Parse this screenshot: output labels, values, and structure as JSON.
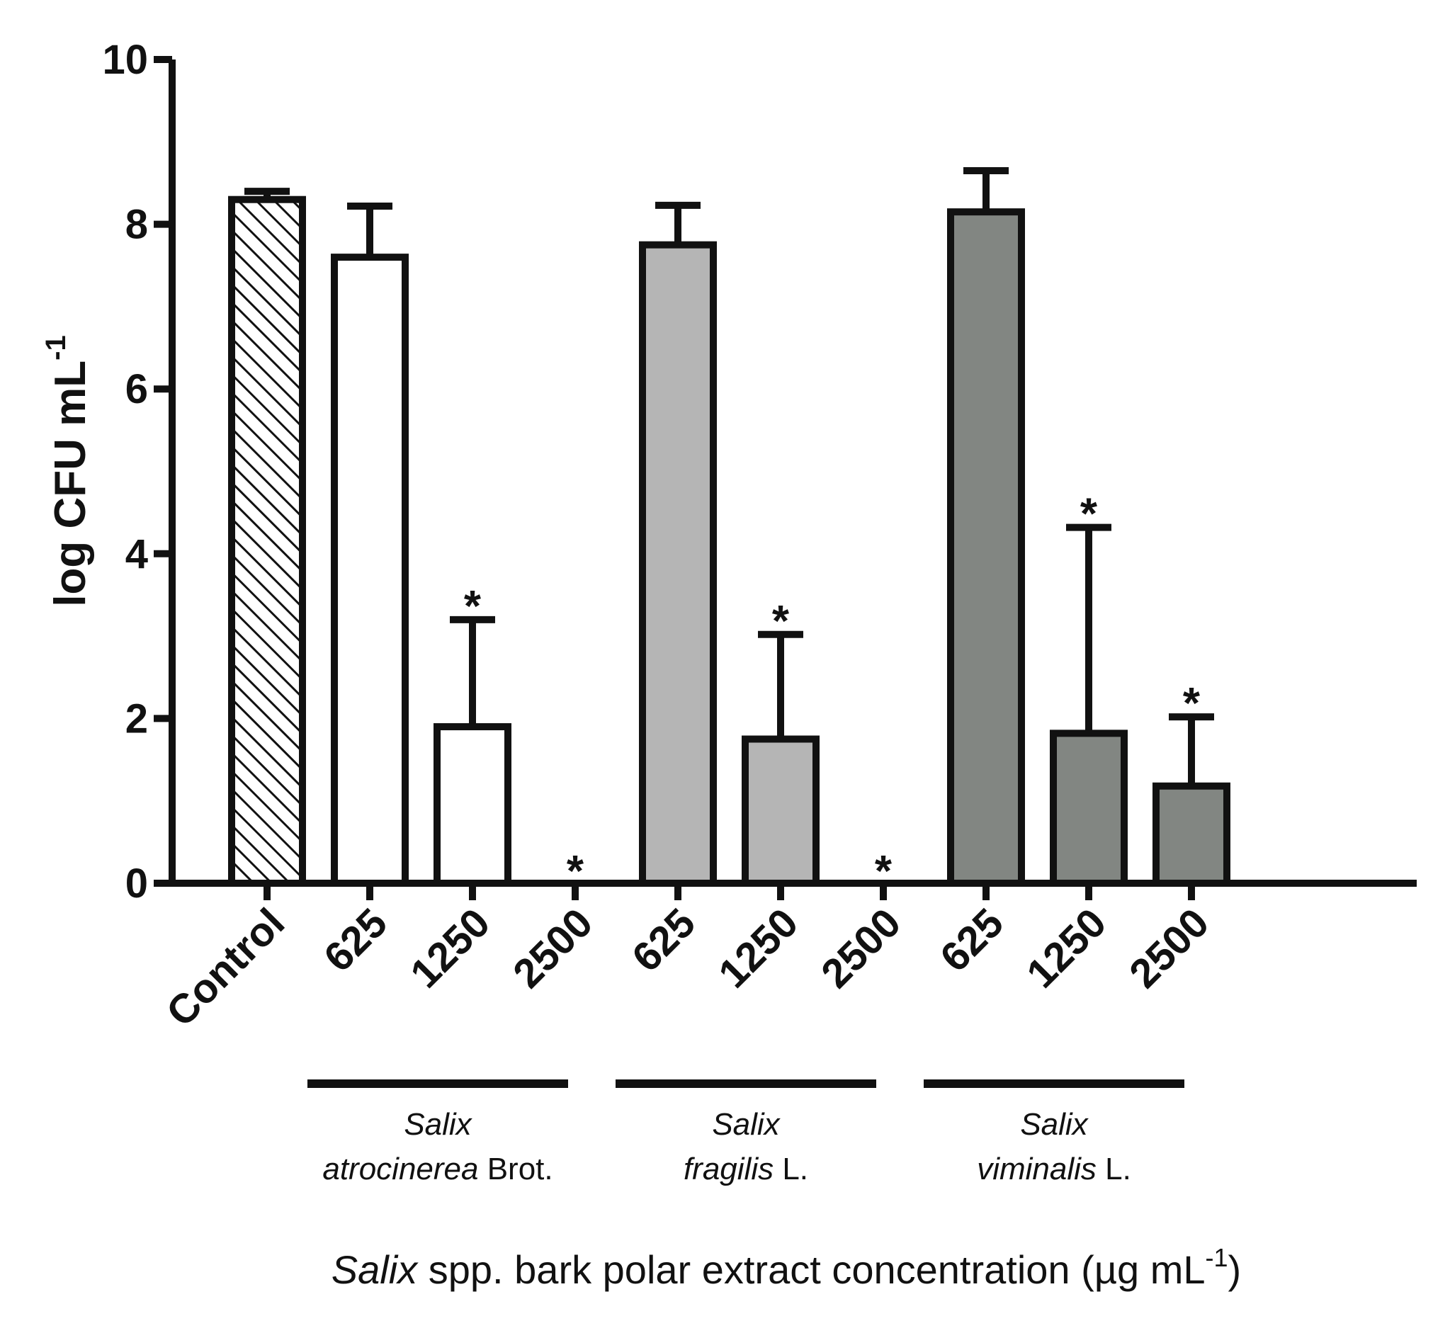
{
  "chart_data": {
    "type": "bar",
    "ylabel": "log CFU mL",
    "ylabel_sup": "-1",
    "xlabel": {
      "italic": "Salix",
      "rest": " spp. bark polar extract concentration (µg mL",
      "sup": "-1",
      "end": ")"
    },
    "ylim": [
      0,
      10
    ],
    "yticks": [
      "0",
      "2",
      "4",
      "6",
      "8",
      "10"
    ],
    "bars": [
      {
        "category": "Control",
        "value": 8.3,
        "error": 0.1,
        "fill": "hatch",
        "significant": false
      },
      {
        "category": "625",
        "value": 7.6,
        "error": 0.62,
        "fill": "#ffffff",
        "significant": false
      },
      {
        "category": "1250",
        "value": 1.9,
        "error": 1.3,
        "fill": "#ffffff",
        "significant": true
      },
      {
        "category": "2500",
        "value": 0,
        "error": 0,
        "fill": "#ffffff",
        "significant": true
      },
      {
        "category": "625",
        "value": 7.75,
        "error": 0.48,
        "fill": "#b5b5b5",
        "significant": false
      },
      {
        "category": "1250",
        "value": 1.75,
        "error": 1.27,
        "fill": "#b5b5b5",
        "significant": true
      },
      {
        "category": "2500",
        "value": 0,
        "error": 0,
        "fill": "#b5b5b5",
        "significant": true
      },
      {
        "category": "625",
        "value": 8.15,
        "error": 0.5,
        "fill": "#828682",
        "significant": false
      },
      {
        "category": "1250",
        "value": 1.82,
        "error": 2.5,
        "fill": "#828682",
        "significant": true
      },
      {
        "category": "2500",
        "value": 1.18,
        "error": 0.84,
        "fill": "#828682",
        "significant": true
      }
    ],
    "groups": [
      {
        "start": 1,
        "end": 3,
        "name_italic": "Salix",
        "species_italic": "atrocinerea",
        "authority": " Brot."
      },
      {
        "start": 4,
        "end": 6,
        "name_italic": "Salix",
        "species_italic": "fragilis",
        "authority": " L."
      },
      {
        "start": 7,
        "end": 9,
        "name_italic": "Salix",
        "species_italic": "viminalis",
        "authority": " L."
      }
    ],
    "significance_marker": "*"
  }
}
